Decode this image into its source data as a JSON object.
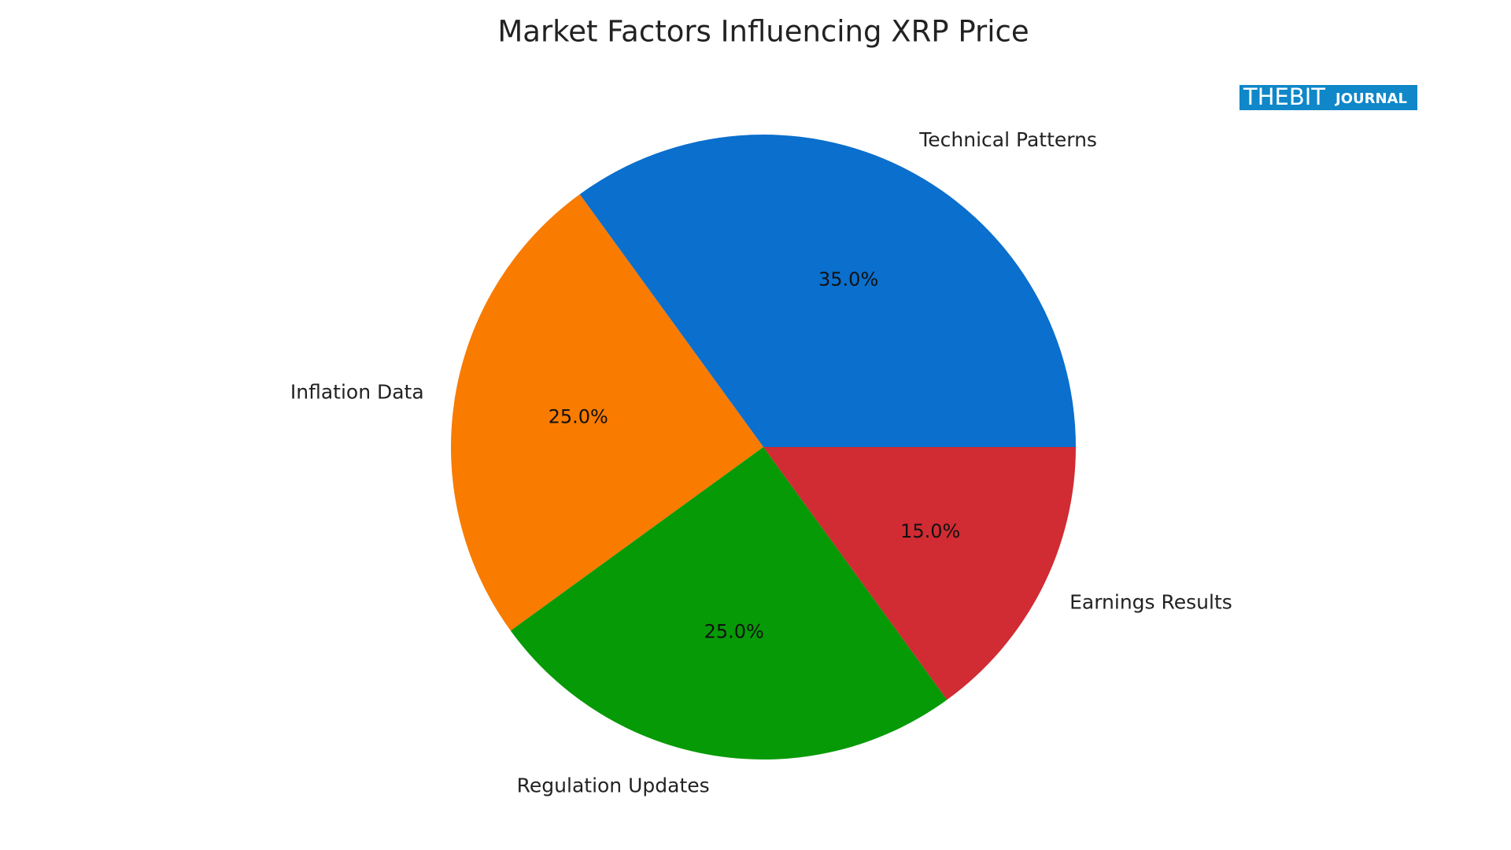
{
  "chart_data": {
    "type": "pie",
    "title": "Market Factors Influencing XRP Price",
    "categories": [
      "Technical Patterns",
      "Inflation Data",
      "Regulation Updates",
      "Earnings Results"
    ],
    "values": [
      35,
      25,
      25,
      15
    ],
    "value_labels": [
      "35.0%",
      "25.0%",
      "25.0%",
      "15.0%"
    ],
    "colors": [
      "#0a6fcd",
      "#f97b00",
      "#069a06",
      "#d12b33"
    ],
    "watermark": [
      "THEBIT",
      "JOURNAL"
    ]
  }
}
